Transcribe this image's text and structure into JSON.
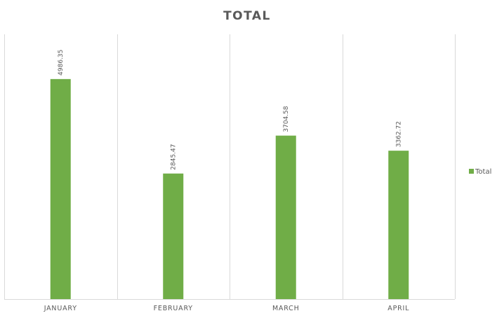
{
  "chart_data": {
    "type": "bar",
    "title": "TOTAL",
    "categories": [
      "JANUARY",
      "FEBRUARY",
      "MARCH",
      "APRIL"
    ],
    "series": [
      {
        "name": "Total",
        "values": [
          4986.35,
          2845.47,
          3704.58,
          3362.72
        ],
        "labels": [
          "4986.35",
          "2845.47",
          "3704.58",
          "3362.72"
        ],
        "color": "#70ad47"
      }
    ],
    "ylim": [
      0,
      6000
    ],
    "grid": "vertical category separators",
    "legend": "right"
  }
}
